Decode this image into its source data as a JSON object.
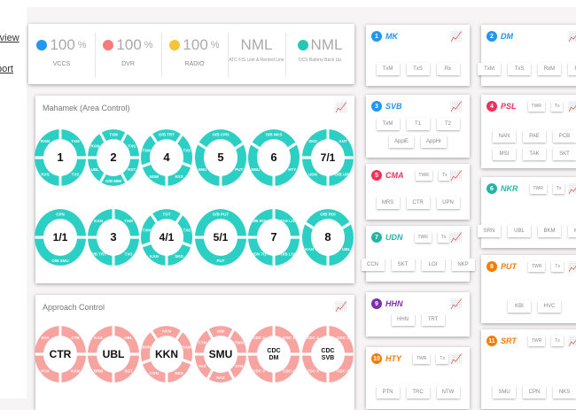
{
  "nav": {
    "items": [
      "rview",
      "port"
    ]
  },
  "status": [
    {
      "value": "100",
      "unit": "%",
      "label": "VCCS",
      "color": "#2196f3",
      "icon": "headset-icon"
    },
    {
      "value": "100",
      "unit": "%",
      "label": "DVR",
      "color": "#f77b7b",
      "icon": "microphone-icon"
    },
    {
      "value": "100",
      "unit": "%",
      "label": "RADIO",
      "color": "#f7c33a",
      "icon": "radio-icon"
    },
    {
      "value": "NML",
      "unit": "",
      "label": "ATC FIS Link & Rented Line",
      "color": "",
      "icon": ""
    },
    {
      "value": "NML",
      "unit": "",
      "label": "DCS Battery Back Up",
      "color": "#26c6b5",
      "icon": "gauge-icon"
    }
  ],
  "area": {
    "title": "Mahamek (Area Control)",
    "rows": [
      [
        {
          "label": "1",
          "segments": [
            "TXM",
            "TXS",
            "RXS",
            "RXM"
          ]
        },
        {
          "label": "2",
          "segments": [
            "TXM",
            "TXS",
            "RXT",
            "O/B MIM",
            "UBL",
            "RXM"
          ]
        },
        {
          "label": "4",
          "segments": [
            "O/B TRT",
            "TXS",
            "RXS",
            "NSW",
            "TXM"
          ]
        },
        {
          "label": "5",
          "segments": [
            "O/B CPN",
            "PUT",
            "SMU"
          ]
        },
        {
          "label": "6",
          "segments": [
            "O/B NKS",
            "HTY",
            "SMU"
          ]
        },
        {
          "label": "7/1",
          "segments": [
            "ANT",
            "O/B UPN",
            "UDN",
            "SKD"
          ]
        }
      ],
      [
        {
          "label": "1/1",
          "segments": [
            "CPN",
            "O/B SMU"
          ]
        },
        {
          "label": "3",
          "segments": [
            "TXM",
            "TXS",
            "O/B TRT",
            "KAN"
          ]
        },
        {
          "label": "4/1",
          "segments": [
            "TOT",
            "TXS",
            "SKD",
            "KAN",
            "TXM"
          ]
        },
        {
          "label": "5/1",
          "segments": [
            "O/B PUT",
            "PUT"
          ]
        },
        {
          "label": "7",
          "segments": [
            "TAS LOK",
            "O/B LOK",
            "UDN 7/1",
            "O/B ROI"
          ]
        },
        {
          "label": "8",
          "segments": [
            "O/B ROI",
            "UBL",
            "KAN"
          ]
        }
      ]
    ]
  },
  "approach": {
    "title": "Approach Control",
    "rows": [
      [
        {
          "label": "CTR",
          "segments": [
            "CTR",
            "KAN",
            "POX",
            "SYA"
          ]
        },
        {
          "label": "UBL",
          "segments": [
            "UBL",
            "SGT",
            "BRM",
            "KAS"
          ]
        },
        {
          "label": "KKN",
          "segments": [
            "KKN",
            "SAM",
            "NKS",
            "CON",
            "BHN"
          ]
        },
        {
          "label": "SMU",
          "segments": [
            "AWI",
            "TWN",
            "STN",
            "NAZ",
            "TAS",
            "CTN"
          ]
        },
        {
          "label": "CDC DM",
          "segments": [
            "CDC 1",
            "CDC 2",
            "CDC 3",
            "CDC 4"
          ]
        },
        {
          "label": "CDC SVB",
          "segments": [
            "CDC 1",
            "CDC 2",
            "CDC 3",
            "CDC 4"
          ]
        }
      ]
    ]
  },
  "colors": {
    "area": "#2ccfc4",
    "approach": "#f7a3a0"
  },
  "units": [
    {
      "num": "1",
      "name": "MK",
      "color": "#2196f3",
      "small": [],
      "rows": [
        [
          "TxM",
          "TxS",
          "Rx"
        ]
      ]
    },
    {
      "num": "3",
      "name": "SVB",
      "color": "#2196f3",
      "small": [],
      "rows": [
        [
          "TxM",
          "T1",
          "T2"
        ],
        [
          "AppiE",
          "AppHr"
        ]
      ]
    },
    {
      "num": "5",
      "name": "CMA",
      "color": "#f0325a",
      "small": [
        "TWR",
        "Tx"
      ],
      "rows": [
        [
          "MRS",
          "CTR",
          "UPN"
        ]
      ]
    },
    {
      "num": "7",
      "name": "UDN",
      "color": "#26b5a5",
      "small": [
        "TWR",
        "Tx"
      ],
      "rows": [
        [
          "CCN",
          "SKT",
          "LOI",
          "NKP"
        ]
      ]
    },
    {
      "num": "9",
      "name": "HHN",
      "color": "#7b2fa8",
      "small": [],
      "rows": [
        [
          "HHN",
          "TRT"
        ]
      ]
    },
    {
      "num": "10",
      "name": "HTY",
      "color": "#f57c00",
      "small": [
        "TWR",
        "Tx"
      ],
      "rows": [
        [
          "PTN",
          "TRC",
          "NTW"
        ]
      ]
    },
    {
      "num": "2",
      "name": "DM",
      "color": "#2196f3",
      "small": [],
      "rows": [
        [
          "TxM",
          "TxS",
          "RxM",
          "RxS"
        ]
      ]
    },
    {
      "num": "4",
      "name": "PSL",
      "color": "#f0325a",
      "small": [
        "TWR",
        "Tx"
      ],
      "rows": [
        [
          "NAN",
          "PAE",
          "PCB"
        ],
        [
          "MSI",
          "TAK",
          "SKT"
        ]
      ]
    },
    {
      "num": "6",
      "name": "NKR",
      "color": "#26b5a5",
      "small": [
        "TWR",
        "Tx"
      ],
      "rows": [
        [
          "SRN",
          "UBL",
          "BKM",
          "KOL"
        ]
      ]
    },
    {
      "num": "8",
      "name": "PUT",
      "color": "#f57c00",
      "small": [
        "TWR",
        "Tx"
      ],
      "rows": [
        [
          "KBI",
          "HVC"
        ]
      ]
    },
    {
      "num": "11",
      "name": "SRT",
      "color": "#f57c00",
      "small": [
        "TWR",
        "Tx"
      ],
      "rows": [
        [
          "SMU",
          "CPN",
          "NKS"
        ]
      ]
    }
  ]
}
